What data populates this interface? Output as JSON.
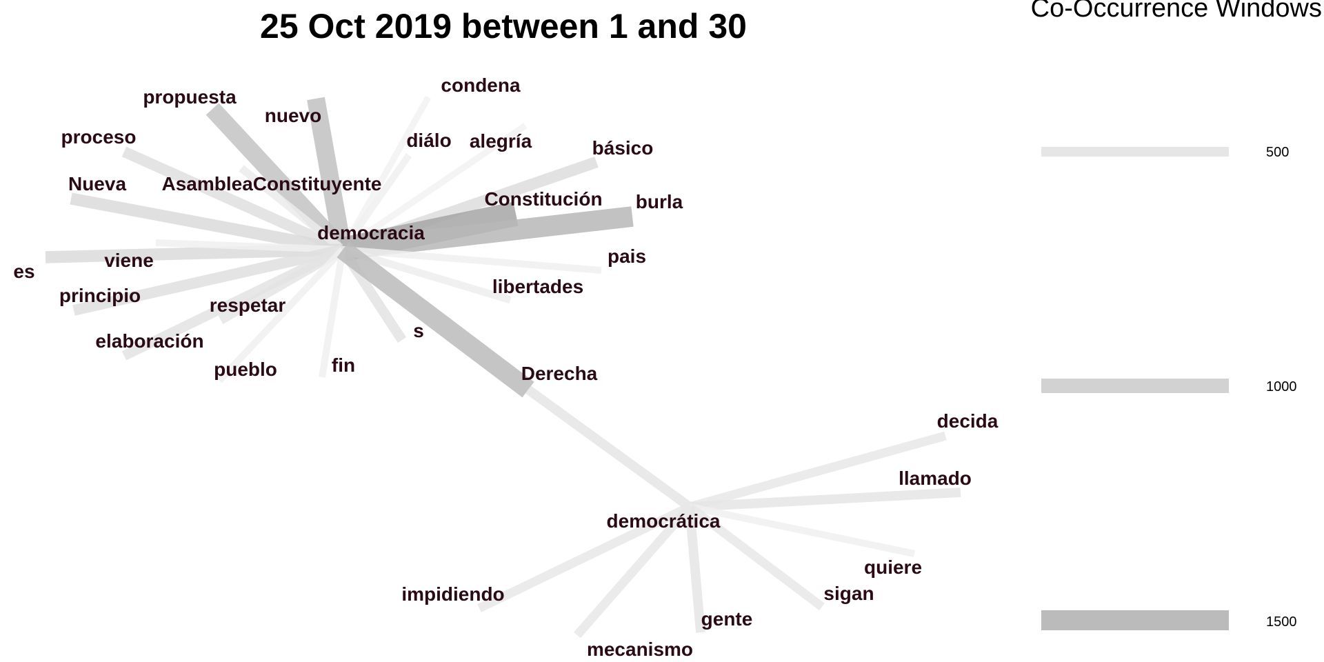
{
  "title": "25 Oct 2019 between 1 and 30",
  "legend": {
    "title": "Co-Occurrence Windows",
    "items": [
      {
        "label": "500",
        "value": 500,
        "color": "#e6e6e6"
      },
      {
        "label": "1000",
        "value": 1000,
        "color": "#d2d2d2"
      },
      {
        "label": "1500",
        "value": 1500,
        "color": "#bbbbbb"
      }
    ]
  },
  "hubs": [
    {
      "id": "democracia",
      "label": "democracia"
    },
    {
      "id": "democratica",
      "label": "democrática"
    }
  ],
  "words": [
    {
      "id": "propuesta",
      "label": "propuesta"
    },
    {
      "id": "nuevo",
      "label": "nuevo"
    },
    {
      "id": "condena",
      "label": "condena"
    },
    {
      "id": "proceso",
      "label": "proceso"
    },
    {
      "id": "dialo",
      "label": "diálo"
    },
    {
      "id": "alegria",
      "label": "alegría"
    },
    {
      "id": "basico",
      "label": "básico"
    },
    {
      "id": "nueva",
      "label": "Nueva"
    },
    {
      "id": "asamblea",
      "label": "AsambleaConstituyente"
    },
    {
      "id": "constitucion",
      "label": "Constitución"
    },
    {
      "id": "burla",
      "label": "burla"
    },
    {
      "id": "es",
      "label": "es"
    },
    {
      "id": "viene",
      "label": "viene"
    },
    {
      "id": "pais",
      "label": "pais"
    },
    {
      "id": "principio",
      "label": "principio"
    },
    {
      "id": "libertades",
      "label": "libertades"
    },
    {
      "id": "respetar",
      "label": "respetar"
    },
    {
      "id": "s",
      "label": "s"
    },
    {
      "id": "elaboracion",
      "label": "elaboración"
    },
    {
      "id": "pueblo",
      "label": "pueblo"
    },
    {
      "id": "fin",
      "label": "fin"
    },
    {
      "id": "derecha",
      "label": "Derecha"
    },
    {
      "id": "decida",
      "label": "decida"
    },
    {
      "id": "llamado",
      "label": "llamado"
    },
    {
      "id": "quiere",
      "label": "quiere"
    },
    {
      "id": "impidiendo",
      "label": "impidiendo"
    },
    {
      "id": "sigan",
      "label": "sigan"
    },
    {
      "id": "gente",
      "label": "gente"
    },
    {
      "id": "mecanismo",
      "label": "mecanismo"
    }
  ],
  "edges": [
    {
      "source": "democracia",
      "target": "propuesta",
      "weight": 1300
    },
    {
      "source": "democracia",
      "target": "nuevo",
      "weight": 1350
    },
    {
      "source": "democracia",
      "target": "condena",
      "weight": 200
    },
    {
      "source": "democracia",
      "target": "proceso",
      "weight": 650
    },
    {
      "source": "democracia",
      "target": "dialo",
      "weight": 250
    },
    {
      "source": "democracia",
      "target": "alegria",
      "weight": 200
    },
    {
      "source": "democracia",
      "target": "basico",
      "weight": 700
    },
    {
      "source": "democracia",
      "target": "nueva",
      "weight": 750
    },
    {
      "source": "democracia",
      "target": "asamblea",
      "weight": 350
    },
    {
      "source": "democracia",
      "target": "constitucion",
      "weight": 2000
    },
    {
      "source": "democracia",
      "target": "burla",
      "weight": 1600
    },
    {
      "source": "democracia",
      "target": "es",
      "weight": 750
    },
    {
      "source": "democracia",
      "target": "viene",
      "weight": 250
    },
    {
      "source": "democracia",
      "target": "pais",
      "weight": 250
    },
    {
      "source": "democracia",
      "target": "principio",
      "weight": 650
    },
    {
      "source": "democracia",
      "target": "libertades",
      "weight": 300
    },
    {
      "source": "democracia",
      "target": "respetar",
      "weight": 500
    },
    {
      "source": "democracia",
      "target": "s",
      "weight": 550
    },
    {
      "source": "democracia",
      "target": "elaboracion",
      "weight": 550
    },
    {
      "source": "democracia",
      "target": "pueblo",
      "weight": 250
    },
    {
      "source": "democracia",
      "target": "fin",
      "weight": 250
    },
    {
      "source": "democracia",
      "target": "derecha",
      "weight": 1500
    },
    {
      "source": "derecha",
      "target": "democratica",
      "weight": 500
    },
    {
      "source": "democratica",
      "target": "decida",
      "weight": 450
    },
    {
      "source": "democratica",
      "target": "llamado",
      "weight": 500
    },
    {
      "source": "democratica",
      "target": "quiere",
      "weight": 250
    },
    {
      "source": "democratica",
      "target": "impidiendo",
      "weight": 450
    },
    {
      "source": "democratica",
      "target": "sigan",
      "weight": 450
    },
    {
      "source": "democratica",
      "target": "gente",
      "weight": 500
    },
    {
      "source": "democratica",
      "target": "mecanismo",
      "weight": 450
    }
  ]
}
